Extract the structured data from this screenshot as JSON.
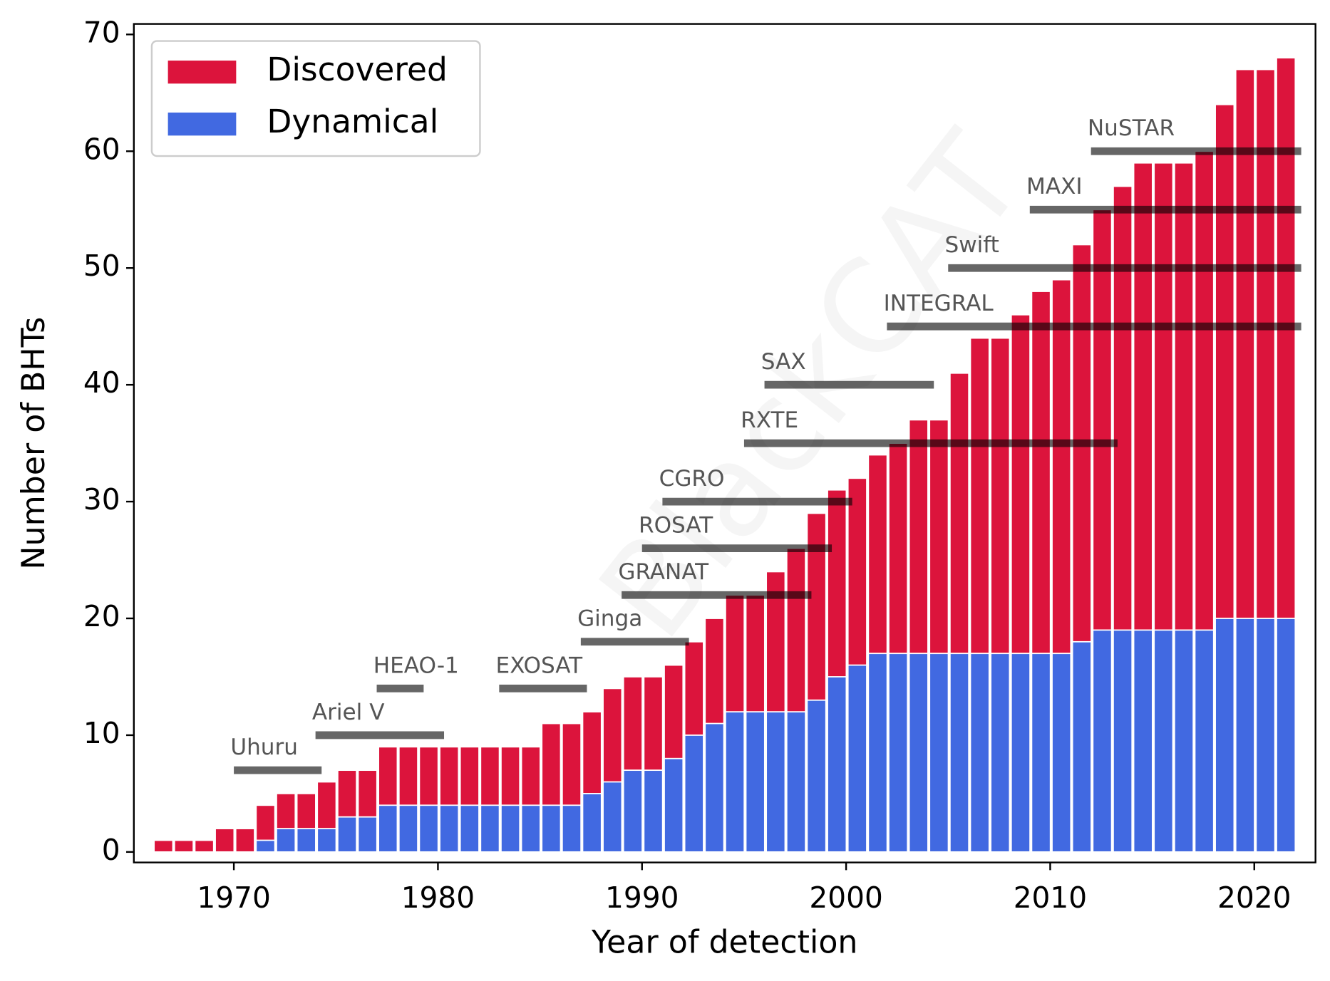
{
  "chart_data": {
    "type": "bar",
    "watermark": "BlackCAT",
    "xlabel": "Year of detection",
    "ylabel": "Number of BHTs",
    "xlim": [
      1965.1,
      2023.0
    ],
    "ylim": [
      -0.9,
      70.9
    ],
    "xticks": [
      1970,
      1980,
      1990,
      2000,
      2010,
      2020
    ],
    "yticks": [
      0,
      10,
      20,
      30,
      40,
      50,
      60,
      70
    ],
    "legend": "upper left",
    "x": [
      1966,
      1967,
      1968,
      1969,
      1970,
      1971,
      1972,
      1973,
      1974,
      1975,
      1976,
      1977,
      1978,
      1979,
      1980,
      1981,
      1982,
      1983,
      1984,
      1985,
      1986,
      1987,
      1988,
      1989,
      1990,
      1991,
      1992,
      1993,
      1994,
      1995,
      1996,
      1997,
      1998,
      1999,
      2000,
      2001,
      2002,
      2003,
      2004,
      2005,
      2006,
      2007,
      2008,
      2009,
      2010,
      2011,
      2012,
      2013,
      2014,
      2015,
      2016,
      2017,
      2018,
      2019,
      2020,
      2021
    ],
    "series": [
      {
        "name": "Discovered",
        "color": "#dc143c",
        "values": [
          1,
          1,
          1,
          2,
          2,
          4,
          5,
          5,
          6,
          7,
          7,
          9,
          9,
          9,
          9,
          9,
          9,
          9,
          9,
          11,
          11,
          12,
          14,
          15,
          15,
          16,
          18,
          20,
          22,
          22,
          24,
          26,
          29,
          31,
          32,
          34,
          35,
          37,
          37,
          41,
          44,
          44,
          46,
          48,
          49,
          52,
          55,
          57,
          59,
          59,
          59,
          60,
          64,
          67,
          67,
          68
        ]
      },
      {
        "name": "Dynamical",
        "color": "#4169e1",
        "values": [
          0,
          0,
          0,
          0,
          0,
          1,
          2,
          2,
          2,
          3,
          3,
          4,
          4,
          4,
          4,
          4,
          4,
          4,
          4,
          4,
          4,
          5,
          6,
          7,
          7,
          8,
          10,
          11,
          12,
          12,
          12,
          12,
          13,
          15,
          16,
          17,
          17,
          17,
          17,
          17,
          17,
          17,
          17,
          17,
          17,
          18,
          19,
          19,
          19,
          19,
          19,
          19,
          20,
          20,
          20,
          20
        ]
      }
    ],
    "missions": [
      {
        "name": "Uhuru",
        "start": 1970,
        "end": 1974.3,
        "y": 7
      },
      {
        "name": "Ariel V",
        "start": 1974,
        "end": 1980.3,
        "y": 10
      },
      {
        "name": "HEAO-1",
        "start": 1977,
        "end": 1979.3,
        "y": 14
      },
      {
        "name": "EXOSAT",
        "start": 1983,
        "end": 1987.3,
        "y": 14
      },
      {
        "name": "Ginga",
        "start": 1987,
        "end": 1992.3,
        "y": 18
      },
      {
        "name": "GRANAT",
        "start": 1989,
        "end": 1998.3,
        "y": 22
      },
      {
        "name": "ROSAT",
        "start": 1990,
        "end": 1999.3,
        "y": 26
      },
      {
        "name": "CGRO",
        "start": 1991,
        "end": 2000.3,
        "y": 30
      },
      {
        "name": "RXTE",
        "start": 1995,
        "end": 2013.3,
        "y": 35
      },
      {
        "name": "SAX",
        "start": 1996,
        "end": 2004.3,
        "y": 40
      },
      {
        "name": "INTEGRAL",
        "start": 2002,
        "end": 2022.3,
        "y": 45
      },
      {
        "name": "Swift",
        "start": 2005,
        "end": 2022.3,
        "y": 50
      },
      {
        "name": "MAXI",
        "start": 2009,
        "end": 2022.3,
        "y": 55
      },
      {
        "name": "NuSTAR",
        "start": 2012,
        "end": 2022.3,
        "y": 60
      }
    ]
  }
}
